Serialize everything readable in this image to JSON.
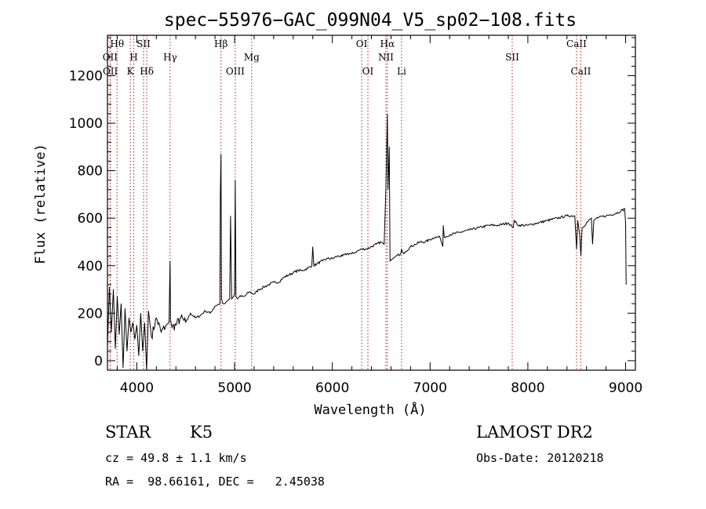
{
  "chart_data": {
    "type": "line",
    "title": "spec−55976−GAC_099N04_V5_sp02−108.fits",
    "xlabel": "Wavelength (Å)",
    "ylabel": "Flux (relative)",
    "xlim": [
      3700,
      9100
    ],
    "ylim": [
      -40,
      1370
    ],
    "x_ticks": [
      4000,
      5000,
      6000,
      7000,
      8000,
      9000
    ],
    "y_ticks": [
      0,
      200,
      400,
      600,
      800,
      1000,
      1200
    ],
    "grid": false,
    "line_color": "#000000",
    "marker_color": "#b22222",
    "spectral_lines": [
      {
        "label": "Hθ",
        "wavelength": 3798,
        "row": 0
      },
      {
        "label": "OII",
        "wavelength": 3727,
        "row": 1
      },
      {
        "label": "OII",
        "wavelength": 3729,
        "row": 2
      },
      {
        "label": "H",
        "wavelength": 3969,
        "row": 1
      },
      {
        "label": "K",
        "wavelength": 3934,
        "row": 2
      },
      {
        "label": "SII",
        "wavelength": 4069,
        "row": 0
      },
      {
        "label": "Hδ",
        "wavelength": 4102,
        "row": 2
      },
      {
        "label": "Hγ",
        "wavelength": 4341,
        "row": 1
      },
      {
        "label": "Hβ",
        "wavelength": 4861,
        "row": 0
      },
      {
        "label": "OIII",
        "wavelength": 5007,
        "row": 2
      },
      {
        "label": "Mg",
        "wavelength": 5175,
        "row": 1
      },
      {
        "label": "OI",
        "wavelength": 6300,
        "row": 0
      },
      {
        "label": "OI",
        "wavelength": 6364,
        "row": 2
      },
      {
        "label": "Hα",
        "wavelength": 6563,
        "row": 0
      },
      {
        "label": "NII",
        "wavelength": 6548,
        "row": 1
      },
      {
        "label": "Li",
        "wavelength": 6708,
        "row": 2
      },
      {
        "label": "SII",
        "wavelength": 7840,
        "row": 1
      },
      {
        "label": "CaII",
        "wavelength": 8498,
        "row": 0
      },
      {
        "label": "CaII",
        "wavelength": 8542,
        "row": 2
      }
    ],
    "spectrum": {
      "x": [
        3700,
        3720,
        3740,
        3760,
        3780,
        3800,
        3820,
        3840,
        3860,
        3880,
        3900,
        3920,
        3940,
        3960,
        3980,
        4000,
        4020,
        4040,
        4060,
        4080,
        4100,
        4120,
        4150,
        4200,
        4250,
        4300,
        4330,
        4340,
        4345,
        4360,
        4400,
        4450,
        4500,
        4550,
        4600,
        4650,
        4700,
        4750,
        4800,
        4850,
        4855,
        4861,
        4867,
        4880,
        4900,
        4920,
        4950,
        4959,
        4970,
        4990,
        5000,
        5007,
        5014,
        5030,
        5050,
        5100,
        5150,
        5200,
        5250,
        5300,
        5350,
        5400,
        5450,
        5500,
        5550,
        5600,
        5650,
        5700,
        5750,
        5790,
        5800,
        5810,
        5850,
        5900,
        5950,
        6000,
        6050,
        6100,
        6150,
        6200,
        6250,
        6300,
        6350,
        6400,
        6450,
        6500,
        6530,
        6548,
        6555,
        6563,
        6570,
        6583,
        6590,
        6620,
        6650,
        6700,
        6708,
        6716,
        6731,
        6750,
        6800,
        6850,
        6900,
        6950,
        7000,
        7050,
        7100,
        7130,
        7135,
        7145,
        7200,
        7300,
        7400,
        7500,
        7600,
        7700,
        7800,
        7850,
        7860,
        7900,
        8000,
        8100,
        8200,
        8300,
        8400,
        8480,
        8498,
        8510,
        8530,
        8542,
        8555,
        8600,
        8650,
        8662,
        8675,
        8700,
        8800,
        8900,
        8950,
        8990,
        9000,
        9005
      ],
      "y": [
        60,
        310,
        120,
        300,
        50,
        270,
        110,
        240,
        -30,
        220,
        40,
        180,
        120,
        160,
        90,
        150,
        20,
        200,
        40,
        160,
        -40,
        210,
        100,
        180,
        120,
        150,
        160,
        420,
        170,
        140,
        150,
        180,
        160,
        200,
        180,
        190,
        210,
        200,
        230,
        240,
        700,
        870,
        260,
        240,
        240,
        250,
        260,
        610,
        260,
        270,
        280,
        760,
        270,
        260,
        270,
        270,
        290,
        280,
        300,
        310,
        320,
        330,
        330,
        350,
        360,
        370,
        380,
        380,
        390,
        400,
        480,
        400,
        410,
        420,
        430,
        430,
        440,
        440,
        450,
        450,
        460,
        470,
        470,
        480,
        490,
        500,
        490,
        720,
        860,
        1040,
        720,
        900,
        420,
        430,
        440,
        450,
        470,
        460,
        450,
        460,
        480,
        490,
        500,
        500,
        510,
        520,
        520,
        480,
        570,
        520,
        530,
        540,
        550,
        560,
        570,
        570,
        580,
        560,
        590,
        570,
        570,
        580,
        590,
        600,
        610,
        610,
        470,
        590,
        530,
        440,
        560,
        580,
        600,
        490,
        590,
        600,
        610,
        620,
        630,
        640,
        580,
        320
      ]
    }
  },
  "info": {
    "class_label": "STAR",
    "subclass": "K5",
    "survey": "LAMOST DR2",
    "cz": "cz = 49.8 ± 1.1 km/s",
    "obs_date": "Obs-Date: 20120218",
    "radec": "RA =  98.66161, DEC =   2.45038"
  }
}
